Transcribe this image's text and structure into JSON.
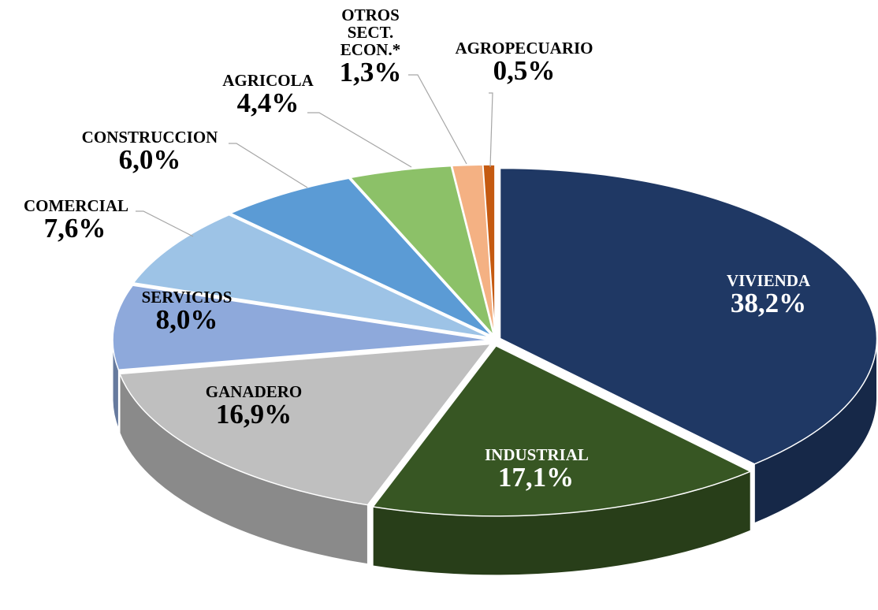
{
  "chart_data": {
    "type": "pie",
    "categories": [
      "VIVIENDA",
      "INDUSTRIAL",
      "GANADERO",
      "SERVICIOS",
      "COMERCIAL",
      "CONSTRUCCION",
      "AGRICOLA",
      "OTROS SECT. ECON.*",
      "AGROPECUARIO"
    ],
    "values": [
      38.2,
      17.1,
      16.9,
      8.0,
      7.6,
      6.0,
      4.4,
      1.3,
      0.5
    ],
    "value_labels": [
      "38,2%",
      "17,1%",
      "16,9%",
      "8,0%",
      "7,6%",
      "6,0%",
      "4,4%",
      "1,3%",
      "0,5%"
    ],
    "colors": [
      "#1f3864",
      "#375623",
      "#bfbfbf",
      "#8ea9db",
      "#9dc3e6",
      "#5b9bd5",
      "#8cc168",
      "#f4b183",
      "#c55a11"
    ]
  }
}
